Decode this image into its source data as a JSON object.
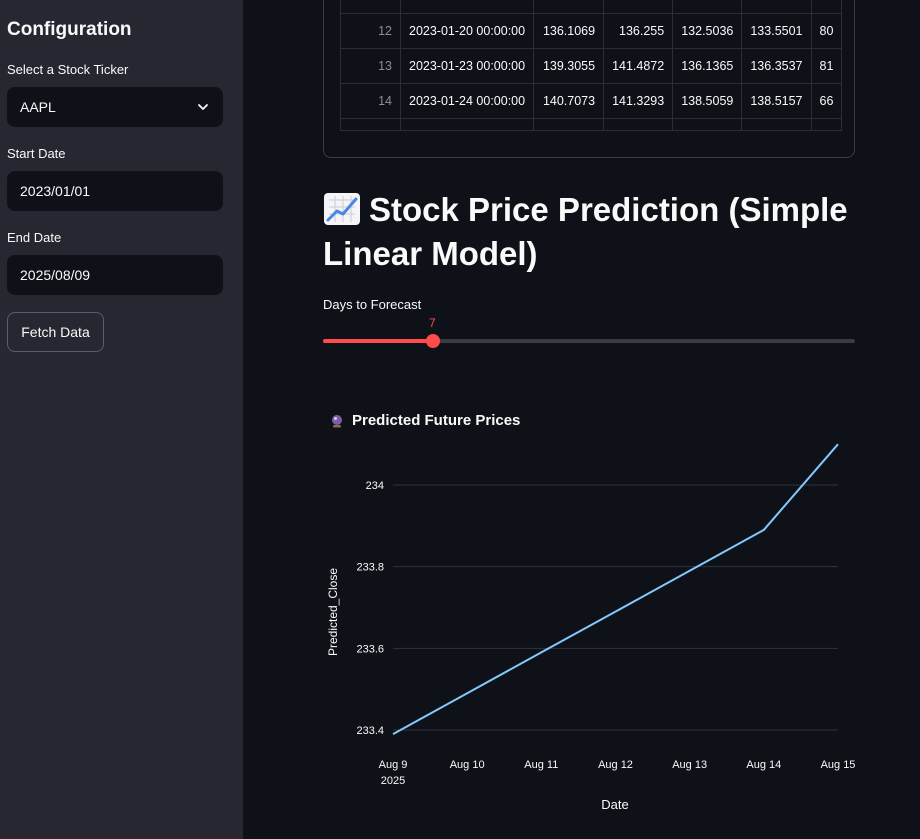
{
  "sidebar": {
    "title": "Configuration",
    "ticker_label": "Select a Stock Ticker",
    "ticker_value": "AAPL",
    "start_label": "Start Date",
    "start_value": "2023/01/01",
    "end_label": "End Date",
    "end_value": "2025/08/09",
    "fetch_label": "Fetch Data"
  },
  "table": {
    "rows": [
      {
        "idx": "12",
        "date": "2023-01-20 00:00:00",
        "c1": "136.1069",
        "c2": "136.255",
        "c3": "132.5036",
        "c4": "133.5501",
        "c5": "80"
      },
      {
        "idx": "13",
        "date": "2023-01-23 00:00:00",
        "c1": "139.3055",
        "c2": "141.4872",
        "c3": "136.1365",
        "c4": "136.3537",
        "c5": "81"
      },
      {
        "idx": "14",
        "date": "2023-01-24 00:00:00",
        "c1": "140.7073",
        "c2": "141.3293",
        "c3": "138.5059",
        "c4": "138.5157",
        "c5": "66"
      }
    ]
  },
  "prediction": {
    "title": "Stock Price Prediction (Simple Linear Model)",
    "title_icon": "chart-increasing-icon",
    "slider_label": "Days to Forecast",
    "slider_value": "7",
    "slider_min": 1,
    "slider_max": 30,
    "accent_color": "#ff4b4b",
    "subtitle": "Predicted Future Prices",
    "subtitle_icon": "crystal-ball-icon"
  },
  "chart_data": {
    "type": "line",
    "x": [
      "Aug 9",
      "Aug 10",
      "Aug 11",
      "Aug 12",
      "Aug 13",
      "Aug 14",
      "Aug 15"
    ],
    "year_label": "2025",
    "series": [
      {
        "values": [
          233.39,
          233.49,
          233.59,
          233.69,
          233.79,
          233.89,
          234.1
        ],
        "color": "#83c9ff"
      }
    ],
    "xlabel": "Date",
    "ylabel": "Predicted_Close",
    "yticks": [
      "233.4",
      "233.6",
      "233.8",
      "234"
    ],
    "ylim": [
      233.4,
      234.0
    ],
    "grid": true
  }
}
